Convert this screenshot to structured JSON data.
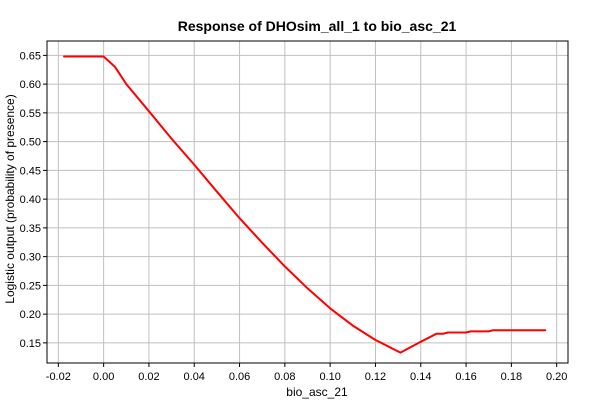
{
  "chart_data": {
    "type": "line",
    "title": "Response of DHOsim_all_1 to bio_asc_21",
    "xlabel": "bio_asc_21",
    "ylabel": "Logistic output (probability of presence)",
    "xlim": [
      -0.025,
      0.205
    ],
    "ylim": [
      0.115,
      0.675
    ],
    "xticks": [
      "-0.02",
      "0.00",
      "0.02",
      "0.04",
      "0.06",
      "0.08",
      "0.10",
      "0.12",
      "0.14",
      "0.16",
      "0.18",
      "0.20"
    ],
    "yticks": [
      "0.15",
      "0.20",
      "0.25",
      "0.30",
      "0.35",
      "0.40",
      "0.45",
      "0.50",
      "0.55",
      "0.60",
      "0.65"
    ],
    "grid": true,
    "legend": "none",
    "series": [
      {
        "color": "#ff0000",
        "x": [
          -0.0175,
          0.0,
          0.005,
          0.01,
          0.02,
          0.03,
          0.04,
          0.05,
          0.06,
          0.07,
          0.08,
          0.09,
          0.1,
          0.11,
          0.12,
          0.131,
          0.14,
          0.147,
          0.15,
          0.152,
          0.155,
          0.16,
          0.162,
          0.165,
          0.17,
          0.172,
          0.18,
          0.19,
          0.195
        ],
        "y": [
          0.648,
          0.648,
          0.63,
          0.6,
          0.553,
          0.505,
          0.46,
          0.413,
          0.367,
          0.324,
          0.283,
          0.245,
          0.21,
          0.18,
          0.155,
          0.133,
          0.152,
          0.166,
          0.166,
          0.168,
          0.168,
          0.168,
          0.17,
          0.17,
          0.17,
          0.172,
          0.172,
          0.172,
          0.172
        ]
      }
    ]
  }
}
